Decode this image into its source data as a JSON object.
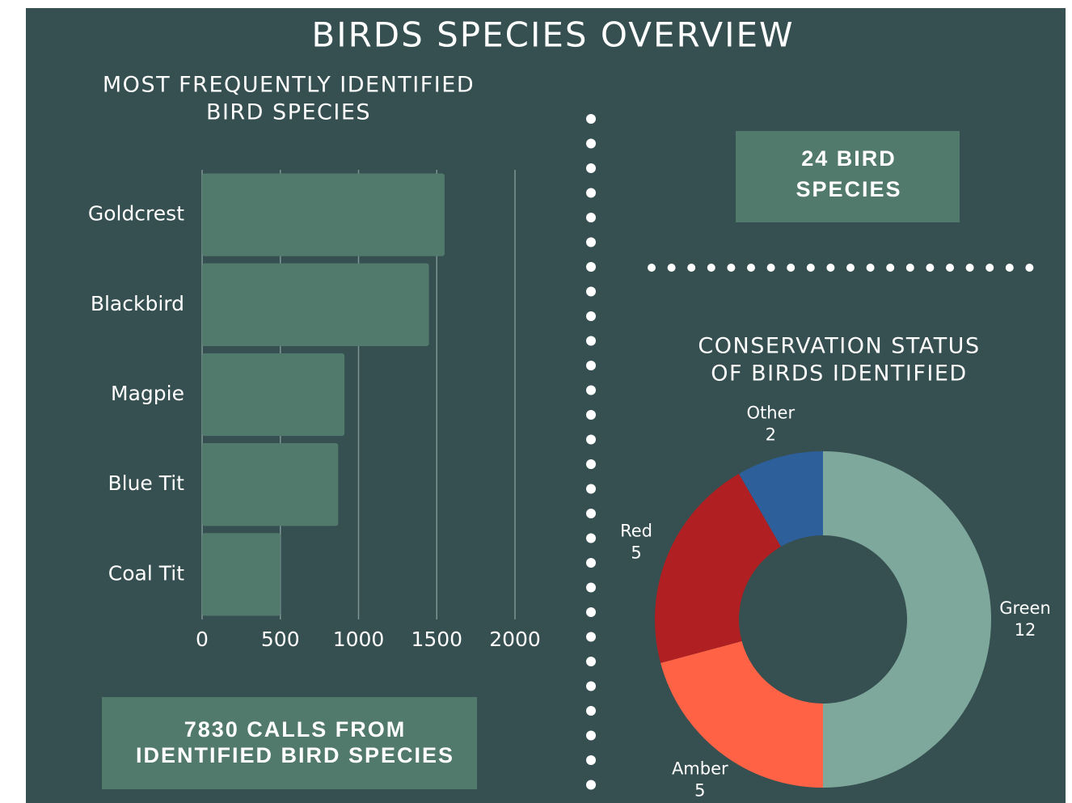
{
  "title": "BIRDS SPECIES OVERVIEW",
  "callouts": [
    [
      "7830 CALLS FROM",
      "IDENTIFIED  BIRD SPECIES"
    ],
    [
      "24 BIRD",
      "SPECIES"
    ]
  ],
  "chart_data": [
    {
      "type": "bar",
      "orientation": "horizontal",
      "title": [
        "MOST FREQUENTLY IDENTIFIED",
        "BIRD SPECIES"
      ],
      "categories": [
        "Goldcrest",
        "Blackbird",
        "Magpie",
        "Blue Tit",
        "Coal Tit"
      ],
      "values": [
        1550,
        1450,
        910,
        870,
        500
      ],
      "color": "#527a6c",
      "xlim": [
        0,
        2000
      ],
      "xticks": [
        0,
        500,
        1000,
        1500,
        2000
      ],
      "grid": true
    },
    {
      "type": "donut",
      "title": [
        "CONSERVATION STATUS",
        "OF BIRDS IDENTIFIED"
      ],
      "categories": [
        "Green",
        "Amber",
        "Red",
        "Other"
      ],
      "values": [
        12,
        5,
        5,
        2
      ],
      "colors": [
        "#7fa89c",
        "#ff6244",
        "#b01f21",
        "#2d5f9a"
      ]
    }
  ]
}
